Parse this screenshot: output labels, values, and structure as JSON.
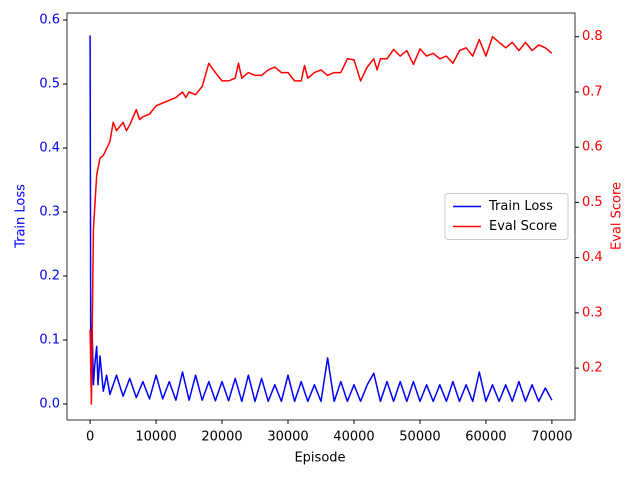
{
  "chart_data": {
    "type": "line",
    "xlabel": "Episode",
    "ylabel": "Train Loss",
    "y2label": "Eval Score",
    "xlim": [
      -3500,
      73500
    ],
    "ylim": [
      -0.025,
      0.611
    ],
    "y2lim": [
      0.106,
      0.843
    ],
    "xticks": [
      0,
      10000,
      20000,
      30000,
      40000,
      50000,
      60000,
      70000
    ],
    "yticks": [
      {
        "value": 0,
        "label": "0.0"
      },
      0.1,
      0.2,
      0.3,
      0.4,
      0.5,
      0.6
    ],
    "y2ticks": [
      0.2,
      0.3,
      0.4,
      0.5,
      0.6,
      0.7,
      0.8
    ],
    "legend": "center right",
    "series": [
      {
        "name": "Train Loss",
        "color": "#0000ff",
        "x": [
          0,
          100,
          300,
          500,
          700,
          1000,
          1200,
          1500,
          2000,
          2500,
          3000,
          4000,
          5000,
          6000,
          7000,
          8000,
          9000,
          10000,
          11000,
          12000,
          13000,
          14000,
          15000,
          16000,
          17000,
          18000,
          19000,
          20000,
          21000,
          22000,
          23000,
          24000,
          25000,
          26000,
          27000,
          28000,
          29000,
          30000,
          31000,
          32000,
          33000,
          34000,
          35000,
          36000,
          37000,
          38000,
          39000,
          40000,
          41000,
          42000,
          43000,
          44000,
          45000,
          46000,
          47000,
          48000,
          49000,
          50000,
          51000,
          52000,
          53000,
          54000,
          55000,
          56000,
          57000,
          58000,
          59000,
          60000,
          61000,
          62000,
          63000,
          64000,
          65000,
          66000,
          67000,
          68000,
          69000,
          70000
        ],
        "values": [
          0.576,
          0.05,
          0.12,
          0.03,
          0.06,
          0.09,
          0.03,
          0.075,
          0.02,
          0.045,
          0.015,
          0.045,
          0.012,
          0.04,
          0.01,
          0.035,
          0.008,
          0.045,
          0.008,
          0.035,
          0.006,
          0.05,
          0.006,
          0.045,
          0.006,
          0.035,
          0.005,
          0.035,
          0.005,
          0.04,
          0.004,
          0.045,
          0.004,
          0.04,
          0.004,
          0.03,
          0.004,
          0.045,
          0.004,
          0.035,
          0.004,
          0.03,
          0.004,
          0.072,
          0.004,
          0.035,
          0.004,
          0.03,
          0.004,
          0.03,
          0.048,
          0.004,
          0.035,
          0.004,
          0.035,
          0.004,
          0.035,
          0.004,
          0.03,
          0.004,
          0.03,
          0.004,
          0.035,
          0.004,
          0.03,
          0.004,
          0.05,
          0.004,
          0.03,
          0.004,
          0.03,
          0.004,
          0.035,
          0.004,
          0.03,
          0.004,
          0.025,
          0.006
        ]
      },
      {
        "name": "Eval Score",
        "color": "#ff0000",
        "axis": "y2",
        "x": [
          0,
          200,
          500,
          1000,
          1500,
          2000,
          3000,
          3500,
          4000,
          5000,
          5500,
          6000,
          7000,
          7500,
          8000,
          9000,
          10000,
          11000,
          12000,
          13000,
          14000,
          14500,
          15000,
          16000,
          17000,
          18000,
          19000,
          20000,
          21000,
          22000,
          22500,
          23000,
          24000,
          25000,
          26000,
          27000,
          28000,
          29000,
          30000,
          31000,
          32000,
          32500,
          33000,
          34000,
          35000,
          36000,
          37000,
          38000,
          39000,
          40000,
          41000,
          42000,
          43000,
          43500,
          44000,
          45000,
          46000,
          47000,
          48000,
          49000,
          50000,
          51000,
          52000,
          53000,
          54000,
          55000,
          56000,
          57000,
          58000,
          59000,
          60000,
          61000,
          62000,
          63000,
          64000,
          65000,
          66000,
          67000,
          68000,
          69000,
          70000
        ],
        "values": [
          0.27,
          0.135,
          0.45,
          0.55,
          0.58,
          0.585,
          0.61,
          0.645,
          0.63,
          0.645,
          0.63,
          0.64,
          0.668,
          0.65,
          0.655,
          0.66,
          0.675,
          0.68,
          0.685,
          0.69,
          0.7,
          0.69,
          0.7,
          0.695,
          0.71,
          0.752,
          0.735,
          0.72,
          0.72,
          0.725,
          0.752,
          0.725,
          0.735,
          0.73,
          0.73,
          0.74,
          0.745,
          0.735,
          0.735,
          0.72,
          0.72,
          0.748,
          0.725,
          0.735,
          0.74,
          0.73,
          0.735,
          0.735,
          0.76,
          0.758,
          0.72,
          0.745,
          0.76,
          0.74,
          0.76,
          0.76,
          0.777,
          0.765,
          0.775,
          0.75,
          0.778,
          0.765,
          0.77,
          0.76,
          0.765,
          0.752,
          0.775,
          0.78,
          0.765,
          0.795,
          0.765,
          0.8,
          0.79,
          0.78,
          0.79,
          0.775,
          0.79,
          0.775,
          0.785,
          0.78,
          0.77
        ]
      }
    ]
  }
}
